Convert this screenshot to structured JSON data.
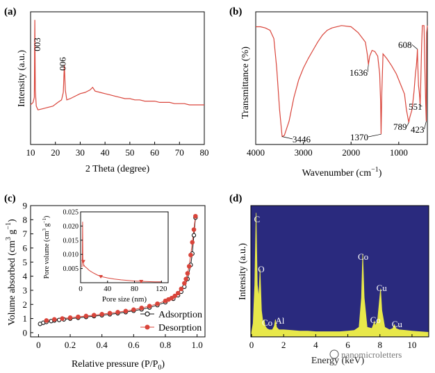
{
  "panels": {
    "a": {
      "label": "(a)"
    },
    "b": {
      "label": "(b)"
    },
    "c": {
      "label": "(c)"
    },
    "d": {
      "label": "(d)"
    }
  },
  "watermark": "nanomicroletters",
  "colors": {
    "xrd_line": "#d9443a",
    "ftir_line": "#d9443a",
    "adsorption": "#111111",
    "desorption": "#d9443a",
    "edx_background": "#2a2a7e",
    "edx_spectrum": "#e8e84a",
    "edx_text": "#ffffff"
  },
  "chart_data": [
    {
      "panel": "a",
      "type": "line",
      "xlabel": "2 Theta (degree)",
      "ylabel": "Intensity (a.u.)",
      "xlim": [
        10,
        80
      ],
      "xticks": [
        10,
        20,
        30,
        40,
        50,
        60,
        70,
        80
      ],
      "y_ticks_shown": false,
      "annotations": [
        {
          "text": "003",
          "x": 11.7
        },
        {
          "text": "006",
          "x": 23.6
        }
      ],
      "series": [
        {
          "x": [
            10,
            11.0,
            11.5,
            11.7,
            11.9,
            12.3,
            13,
            15,
            17,
            19,
            21,
            22.5,
            23.2,
            23.6,
            24.0,
            24.6,
            26,
            28,
            30,
            32,
            34,
            35,
            36,
            38,
            40,
            42,
            44,
            46,
            48,
            50,
            52,
            54,
            56,
            58,
            60,
            62,
            64,
            66,
            68,
            70,
            72,
            74,
            76,
            78,
            80
          ],
          "y": [
            0.3,
            0.32,
            0.36,
            0.98,
            0.42,
            0.29,
            0.26,
            0.27,
            0.28,
            0.29,
            0.32,
            0.34,
            0.4,
            0.62,
            0.42,
            0.34,
            0.35,
            0.37,
            0.39,
            0.4,
            0.42,
            0.44,
            0.41,
            0.4,
            0.39,
            0.38,
            0.37,
            0.36,
            0.35,
            0.35,
            0.34,
            0.34,
            0.33,
            0.33,
            0.33,
            0.32,
            0.32,
            0.32,
            0.31,
            0.31,
            0.31,
            0.3,
            0.3,
            0.3,
            0.3
          ]
        }
      ]
    },
    {
      "panel": "b",
      "type": "line",
      "xlabel": "Wavenumber (cm",
      "xlabel_sup": "−1",
      "xlabel_end": ")",
      "ylabel": "Transmittance (%)",
      "xlim": [
        4000,
        400
      ],
      "xticks": [
        4000,
        3000,
        2000,
        1000
      ],
      "y_ticks_shown": false,
      "annotations": [
        {
          "text": "3446",
          "x": 3446
        },
        {
          "text": "1636",
          "x": 1636
        },
        {
          "text": "1370",
          "x": 1370
        },
        {
          "text": "789",
          "x": 789
        },
        {
          "text": "608",
          "x": 608
        },
        {
          "text": "551",
          "x": 551
        },
        {
          "text": "423",
          "x": 423
        }
      ],
      "series": [
        {
          "x": [
            4000,
            3900,
            3800,
            3700,
            3620,
            3560,
            3500,
            3446,
            3400,
            3300,
            3200,
            3100,
            3000,
            2900,
            2800,
            2700,
            2600,
            2500,
            2400,
            2200,
            2000,
            1850,
            1700,
            1660,
            1636,
            1610,
            1560,
            1500,
            1440,
            1400,
            1380,
            1370,
            1355,
            1330,
            1250,
            1150,
            1050,
            950,
            880,
            840,
            800,
            789,
            770,
            720,
            680,
            650,
            630,
            615,
            608,
            600,
            585,
            570,
            560,
            551,
            540,
            520,
            505,
            490,
            470,
            450,
            435,
            423,
            415,
            400
          ],
          "y": [
            0.95,
            0.95,
            0.94,
            0.92,
            0.85,
            0.6,
            0.25,
            0.02,
            0.03,
            0.15,
            0.35,
            0.5,
            0.6,
            0.68,
            0.75,
            0.82,
            0.88,
            0.92,
            0.94,
            0.96,
            0.95,
            0.9,
            0.82,
            0.72,
            0.63,
            0.7,
            0.75,
            0.74,
            0.7,
            0.55,
            0.3,
            0.04,
            0.4,
            0.72,
            0.68,
            0.62,
            0.55,
            0.45,
            0.38,
            0.25,
            0.16,
            0.14,
            0.18,
            0.25,
            0.4,
            0.55,
            0.62,
            0.7,
            0.76,
            0.62,
            0.45,
            0.4,
            0.35,
            0.28,
            0.45,
            0.8,
            0.96,
            0.96,
            0.96,
            0.55,
            0.3,
            0.15,
            0.9,
            0.96
          ]
        }
      ]
    },
    {
      "panel": "c",
      "type": "line",
      "xlabel": "Relative pressure (P/P",
      "xlabel_sub": "0",
      "xlabel_end": ")",
      "ylabel": "Volume absorbed (cm",
      "ylabel_sup": "3",
      "ylabel_mid": " g",
      "ylabel_sup2": "−1",
      "ylabel_end": ")",
      "xlim": [
        -0.05,
        1.05
      ],
      "ylim": [
        -0.3,
        9
      ],
      "xticks": [
        0.0,
        0.2,
        0.4,
        0.6,
        0.8,
        1.0
      ],
      "xtick_labels": [
        "0",
        "0.2",
        "0.4",
        "0.6",
        "0.8",
        "1.0"
      ],
      "yticks": [
        0,
        1,
        2,
        3,
        4,
        5,
        6,
        7,
        8,
        9
      ],
      "legend": {
        "placement": "bottom-right",
        "entries": [
          "Adsorption",
          "Desorption"
        ]
      },
      "series": [
        {
          "name": "Adsorption",
          "x": [
            0.01,
            0.03,
            0.05,
            0.08,
            0.1,
            0.13,
            0.16,
            0.2,
            0.25,
            0.3,
            0.35,
            0.4,
            0.45,
            0.5,
            0.55,
            0.6,
            0.65,
            0.7,
            0.75,
            0.8,
            0.85,
            0.88,
            0.9,
            0.92,
            0.94,
            0.96,
            0.97,
            0.98,
            0.99
          ],
          "y": [
            0.62,
            0.7,
            0.76,
            0.82,
            0.86,
            0.9,
            0.94,
            0.99,
            1.05,
            1.11,
            1.17,
            1.23,
            1.3,
            1.37,
            1.45,
            1.55,
            1.65,
            1.78,
            1.95,
            2.15,
            2.4,
            2.65,
            2.9,
            3.25,
            3.8,
            4.8,
            5.6,
            6.9,
            8.15
          ]
        },
        {
          "name": "Desorption",
          "x": [
            0.99,
            0.98,
            0.97,
            0.96,
            0.95,
            0.94,
            0.93,
            0.92,
            0.9,
            0.88,
            0.86,
            0.84,
            0.82,
            0.8,
            0.75,
            0.7,
            0.65,
            0.6,
            0.55,
            0.5,
            0.45,
            0.4,
            0.35,
            0.3,
            0.25,
            0.2,
            0.15,
            0.1,
            0.05
          ],
          "y": [
            8.25,
            7.3,
            6.4,
            5.5,
            4.7,
            4.2,
            3.8,
            3.5,
            3.1,
            2.8,
            2.6,
            2.45,
            2.35,
            2.25,
            2.05,
            1.88,
            1.75,
            1.63,
            1.53,
            1.45,
            1.38,
            1.31,
            1.24,
            1.18,
            1.12,
            1.06,
            1.0,
            0.94,
            0.86
          ]
        }
      ],
      "inset": {
        "type": "line",
        "xlabel": "Pore size (nm)",
        "ylabel": "Pore volume (cm",
        "ylabel_sup": "3",
        "ylabel_mid": " g",
        "ylabel_sup2": "−1",
        "ylabel_end": ")",
        "xlim": [
          0,
          130
        ],
        "ylim": [
          0,
          0.025
        ],
        "xticks": [
          0,
          40,
          80,
          120
        ],
        "yticks": [
          0.005,
          0.01,
          0.015,
          0.02,
          0.025
        ],
        "ytick_labels": [
          "0.005",
          "0.010",
          "0.015",
          "0.020",
          "0.025"
        ],
        "series": [
          {
            "x": [
              2.0,
              2.5,
              3.0,
              3.3,
              3.6,
              4.0,
              4.5,
              5.0,
              6,
              7,
              8,
              10,
              12,
              15,
              20,
              25,
              30,
              40,
              50,
              60,
              70,
              80,
              90,
              100,
              110,
              120
            ],
            "y": [
              0.0055,
              0.008,
              0.0215,
              0.009,
              0.007,
              0.0075,
              0.006,
              0.0062,
              0.0058,
              0.0056,
              0.0054,
              0.005,
              0.0045,
              0.004,
              0.0033,
              0.0027,
              0.0022,
              0.0017,
              0.0013,
              0.001,
              0.0008,
              0.0006,
              0.0005,
              0.0004,
              0.0003,
              0.0003
            ]
          }
        ]
      }
    },
    {
      "panel": "d",
      "type": "area",
      "xlabel": "Energy (keV)",
      "ylabel": "Intensity (a.u.)",
      "xlim": [
        0,
        11
      ],
      "xticks": [
        0,
        2,
        4,
        6,
        8,
        10
      ],
      "y_ticks_shown": false,
      "annotations": [
        {
          "text": "C",
          "x": 0.28
        },
        {
          "text": "O",
          "x": 0.53
        },
        {
          "text": "Co",
          "x": 0.78
        },
        {
          "text": "Al",
          "x": 1.49
        },
        {
          "text": "Co",
          "x": 6.93
        },
        {
          "text": "Cu",
          "x": 8.04
        },
        {
          "text": "Co",
          "x": 7.65
        },
        {
          "text": "Cu",
          "x": 8.91
        }
      ],
      "series": [
        {
          "x": [
            0,
            0.1,
            0.2,
            0.28,
            0.36,
            0.45,
            0.53,
            0.62,
            0.72,
            0.78,
            0.85,
            0.95,
            1.1,
            1.3,
            1.42,
            1.49,
            1.56,
            1.7,
            2.0,
            2.5,
            3.0,
            3.5,
            4.0,
            4.5,
            5.0,
            5.5,
            6.0,
            6.4,
            6.7,
            6.85,
            6.93,
            7.02,
            7.2,
            7.5,
            7.62,
            7.65,
            7.7,
            7.85,
            7.95,
            8.04,
            8.12,
            8.3,
            8.6,
            8.8,
            8.91,
            9.0,
            9.2,
            9.6,
            10.0,
            10.5,
            11.0
          ],
          "y": [
            0.03,
            0.1,
            0.4,
            0.96,
            0.4,
            0.3,
            0.52,
            0.2,
            0.1,
            0.13,
            0.08,
            0.06,
            0.05,
            0.05,
            0.08,
            0.13,
            0.07,
            0.05,
            0.05,
            0.045,
            0.04,
            0.04,
            0.035,
            0.035,
            0.035,
            0.035,
            0.04,
            0.045,
            0.07,
            0.3,
            0.64,
            0.3,
            0.07,
            0.06,
            0.1,
            0.12,
            0.08,
            0.12,
            0.25,
            0.37,
            0.2,
            0.07,
            0.05,
            0.06,
            0.09,
            0.06,
            0.05,
            0.045,
            0.04,
            0.035,
            0.03
          ]
        }
      ]
    }
  ]
}
